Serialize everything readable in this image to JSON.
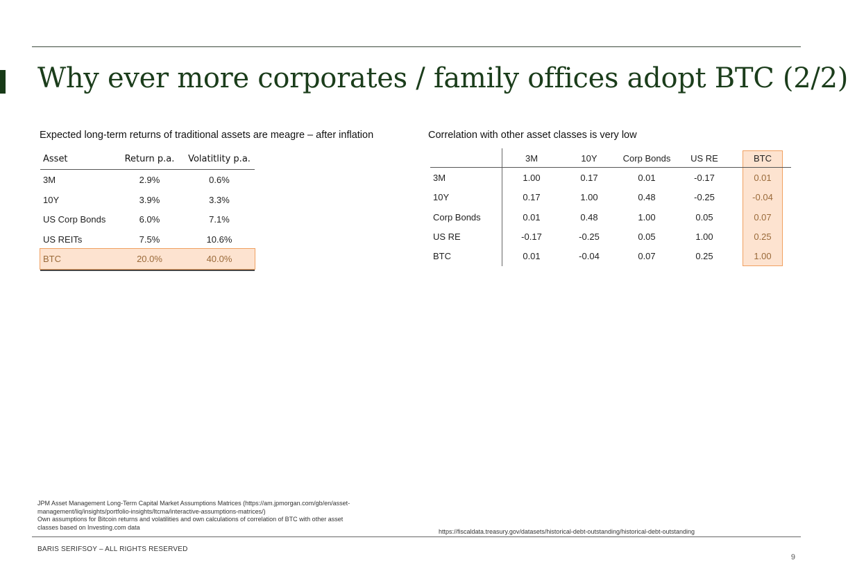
{
  "slide": {
    "title": "Why ever more corporates / family offices adopt BTC (2/2)",
    "page_number": "9",
    "copyright": "BARIS SERIFSOY – ALL RIGHTS RESERVED",
    "source_url": "https://fiscaldata.treasury.gov/datasets/historical-debt-outstanding/historical-debt-outstanding",
    "footnote_line1": "JPM Asset Management  Long-Term Capital Market Assumptions Matrices (https://am.jpmorgan.com/gb/en/asset-",
    "footnote_line2": "management/liq/insights/portfolio-insights/ltcma/interactive-assumptions-matrices/)",
    "footnote_line3": "Own assumptions for Bitcoin returns and volatilities and own calculations of correlation of BTC with other asset",
    "footnote_line4": "classes based on Investing.com data"
  },
  "left_section": {
    "heading": "Expected long-term returns of traditional assets are meagre – after inflation",
    "columns": [
      "Asset",
      "Return p.a.",
      "Volatitlity p.a."
    ],
    "rows": [
      {
        "asset": "3M",
        "return": "2.9%",
        "volatility": "0.6%"
      },
      {
        "asset": "10Y",
        "return": "3.9%",
        "volatility": "3.3%"
      },
      {
        "asset": "US Corp Bonds",
        "return": "6.0%",
        "volatility": "7.1%"
      },
      {
        "asset": "US REITs",
        "return": "7.5%",
        "volatility": "10.6%"
      },
      {
        "asset": "BTC",
        "return": "20.0%",
        "volatility": "40.0%"
      }
    ],
    "highlight_color": "#f0a060"
  },
  "right_section": {
    "heading": "Correlation with other asset classes is very low",
    "columns": [
      "3M",
      "10Y",
      "Corp Bonds",
      "US RE",
      "BTC"
    ],
    "rows": [
      {
        "label": "3M",
        "values": [
          "1.00",
          "0.17",
          "0.01",
          "-0.17",
          "0.01"
        ]
      },
      {
        "label": "10Y",
        "values": [
          "0.17",
          "1.00",
          "0.48",
          "-0.25",
          "-0.04"
        ]
      },
      {
        "label": "Corp Bonds",
        "values": [
          "0.01",
          "0.48",
          "1.00",
          "0.05",
          "0.07"
        ]
      },
      {
        "label": "US RE",
        "values": [
          "-0.17",
          "-0.25",
          "0.05",
          "1.00",
          "0.25"
        ]
      },
      {
        "label": "BTC",
        "values": [
          "0.01",
          "-0.04",
          "0.07",
          "0.25",
          "1.00"
        ]
      }
    ]
  }
}
